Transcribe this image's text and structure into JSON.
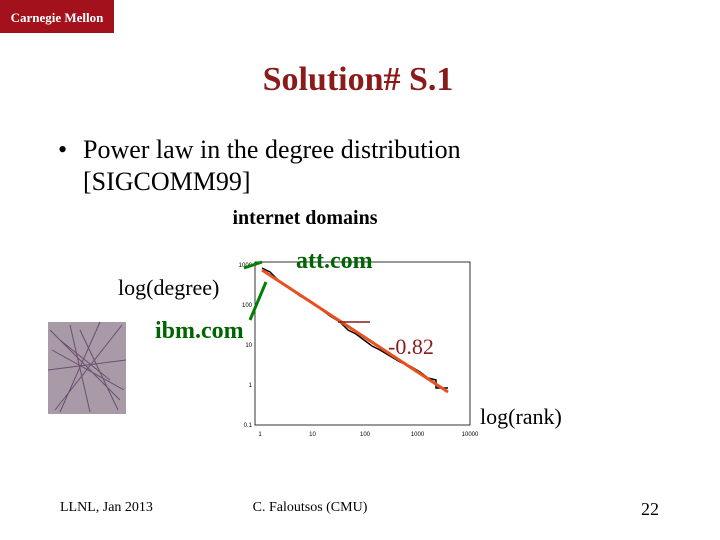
{
  "header": {
    "logo": "Carnegie Mellon",
    "title": "Solution# S.1"
  },
  "bullets": [
    {
      "lines": [
        "Power law in the degree distribution",
        "[SIGCOMM99]"
      ]
    }
  ],
  "figure": {
    "caption": "internet domains",
    "y_label": "log(degree)",
    "x_label": "log(rank)",
    "annotations": [
      "att.com",
      "ibm.com",
      "-0.82"
    ],
    "yticks": [
      "1000",
      "100",
      "10",
      "1",
      "0.1"
    ],
    "xticks": [
      "1",
      "10",
      "100",
      "1000",
      "10000"
    ]
  },
  "footer": {
    "left": "LLNL, Jan 2013",
    "center": "C. Faloutsos (CMU)",
    "page": "22"
  }
}
